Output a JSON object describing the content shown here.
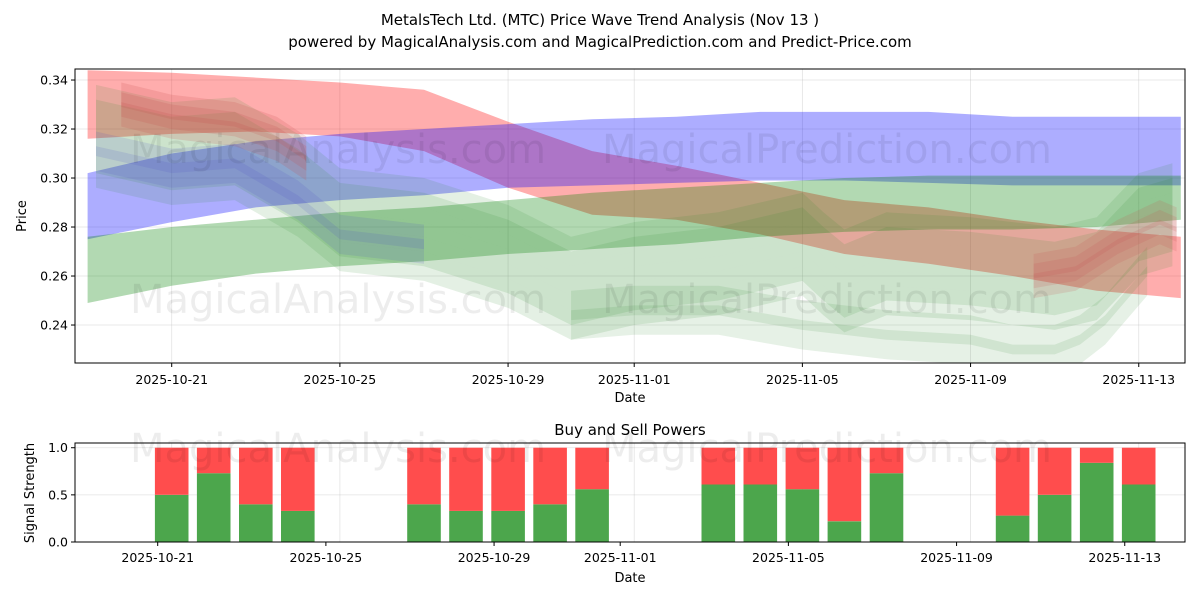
{
  "chart_data": [
    {
      "type": "area",
      "title": "MetalsTech Ltd. (MTC) Price Wave Trend Analysis (Nov 13 )",
      "subtitle": "powered by MagicalAnalysis.com and MagicalPrediction.com and Predict-Price.com",
      "xlabel": "Date",
      "ylabel": "Price",
      "watermarks": [
        "MagicalAnalysis.com",
        "MagicalPrediction.com",
        "MagicalAnalysis.com",
        "MagicalPrediction.com"
      ],
      "x_ticks": [
        "2025-10-21",
        "2025-10-25",
        "2025-10-29",
        "2025-11-01",
        "2025-11-05",
        "2025-11-09",
        "2025-11-13"
      ],
      "x_tick_days": [
        3,
        7,
        11,
        14,
        18,
        22,
        26
      ],
      "xlim": [
        0.7,
        27.1
      ],
      "y_ticks": [
        "0.24",
        "0.26",
        "0.28",
        "0.30",
        "0.32",
        "0.34"
      ],
      "y_tick_values": [
        0.24,
        0.26,
        0.28,
        0.3,
        0.32,
        0.34
      ],
      "ylim": [
        0.2245,
        0.3445
      ],
      "grid": true,
      "bands": [
        {
          "name": "red-band",
          "color": "#ff0000",
          "opacity": 0.32,
          "x": [
            1,
            3,
            5,
            7,
            9,
            11,
            13,
            15,
            17,
            19,
            21,
            23,
            25,
            27
          ],
          "upper": [
            0.344,
            0.343,
            0.341,
            0.339,
            0.336,
            0.323,
            0.311,
            0.305,
            0.298,
            0.291,
            0.288,
            0.283,
            0.279,
            0.276
          ],
          "lower": [
            0.316,
            0.318,
            0.319,
            0.317,
            0.311,
            0.296,
            0.285,
            0.283,
            0.277,
            0.269,
            0.265,
            0.26,
            0.254,
            0.251
          ]
        },
        {
          "name": "blue-band",
          "color": "#0000ff",
          "opacity": 0.32,
          "x": [
            1,
            3,
            5,
            7,
            9,
            11,
            13,
            15,
            17,
            19,
            21,
            23,
            25,
            27
          ],
          "upper": [
            0.302,
            0.31,
            0.315,
            0.318,
            0.32,
            0.322,
            0.324,
            0.325,
            0.327,
            0.327,
            0.327,
            0.325,
            0.325,
            0.325
          ],
          "lower": [
            0.275,
            0.282,
            0.288,
            0.291,
            0.293,
            0.296,
            0.297,
            0.298,
            0.299,
            0.299,
            0.298,
            0.297,
            0.297,
            0.297
          ]
        },
        {
          "name": "green-band",
          "color": "#008000",
          "opacity": 0.3,
          "x": [
            1,
            3,
            5,
            7,
            9,
            11,
            13,
            15,
            17,
            19,
            21,
            23,
            25,
            27
          ],
          "upper": [
            0.276,
            0.28,
            0.283,
            0.286,
            0.288,
            0.291,
            0.294,
            0.296,
            0.298,
            0.3,
            0.301,
            0.301,
            0.301,
            0.301
          ],
          "lower": [
            0.249,
            0.256,
            0.261,
            0.264,
            0.266,
            0.269,
            0.271,
            0.273,
            0.276,
            0.278,
            0.279,
            0.279,
            0.28,
            0.283
          ]
        }
      ],
      "waves": {
        "x": [
          1.2,
          3,
          4.5,
          6,
          7,
          9,
          11,
          12.5,
          14,
          16,
          18,
          18.5,
          19,
          20,
          22,
          24,
          25,
          26,
          26.8
        ],
        "center": [
          0.314,
          0.307,
          0.309,
          0.294,
          0.28,
          0.276,
          0.265,
          0.252,
          0.258,
          0.262,
          0.27,
          0.262,
          0.255,
          0.262,
          0.26,
          0.256,
          0.26,
          0.278,
          0.282
        ],
        "offsets": [
          -0.012,
          -0.006,
          0.0,
          0.006,
          0.012,
          0.018
        ],
        "red_x": [
          1.8,
          3,
          4.5,
          5.5,
          6.2
        ],
        "red_center": [
          0.33,
          0.325,
          0.322,
          0.316,
          0.308
        ],
        "red_x2": [
          23.5,
          24.5,
          25.5,
          26.5,
          26.9
        ],
        "red_center2": [
          0.26,
          0.263,
          0.274,
          0.282,
          0.279
        ],
        "lower_x": [
          12.5,
          14,
          16,
          18,
          20,
          22,
          23,
          24,
          24.6,
          25.2,
          26.2
        ],
        "lower_center": [
          0.244,
          0.246,
          0.246,
          0.24,
          0.236,
          0.234,
          0.23,
          0.23,
          0.234,
          0.242,
          0.262
        ]
      },
      "bar_chart": {
        "title": "Buy and Sell Powers",
        "xlabel": "Date",
        "ylabel": "Signal Strength",
        "y_ticks": [
          "0.0",
          "0.5",
          "1.0"
        ],
        "y_tick_values": [
          0.0,
          0.5,
          1.0
        ],
        "ylim": [
          0,
          1.05
        ],
        "xlim": [
          0.7,
          27.1
        ],
        "x_ticks": [
          "2025-10-21",
          "2025-10-25",
          "2025-10-29",
          "2025-11-01",
          "2025-11-05",
          "2025-11-09",
          "2025-11-13"
        ],
        "x_tick_days": [
          3,
          7,
          11,
          14,
          18,
          22,
          26
        ],
        "buy_color": "#4ca64c",
        "sell_color": "#ff4d4d",
        "series": [
          {
            "name": "Buy",
            "days": [
              3,
              4,
              5,
              6,
              9,
              10,
              11,
              12,
              13,
              16,
              17,
              18,
              19,
              20,
              23,
              24,
              25,
              26
            ],
            "values": [
              0.5,
              0.73,
              0.4,
              0.33,
              0.4,
              0.33,
              0.33,
              0.4,
              0.56,
              0.61,
              0.61,
              0.56,
              0.22,
              0.73,
              0.28,
              0.5,
              0.84,
              0.61
            ]
          },
          {
            "name": "Sell",
            "days": [
              3,
              4,
              5,
              6,
              9,
              10,
              11,
              12,
              13,
              16,
              17,
              18,
              19,
              20,
              23,
              24,
              25,
              26
            ],
            "values": [
              0.5,
              0.27,
              0.6,
              0.67,
              0.6,
              0.67,
              0.67,
              0.6,
              0.44,
              0.39,
              0.39,
              0.44,
              0.78,
              0.27,
              0.72,
              0.5,
              0.16,
              0.39
            ]
          }
        ]
      }
    }
  ]
}
